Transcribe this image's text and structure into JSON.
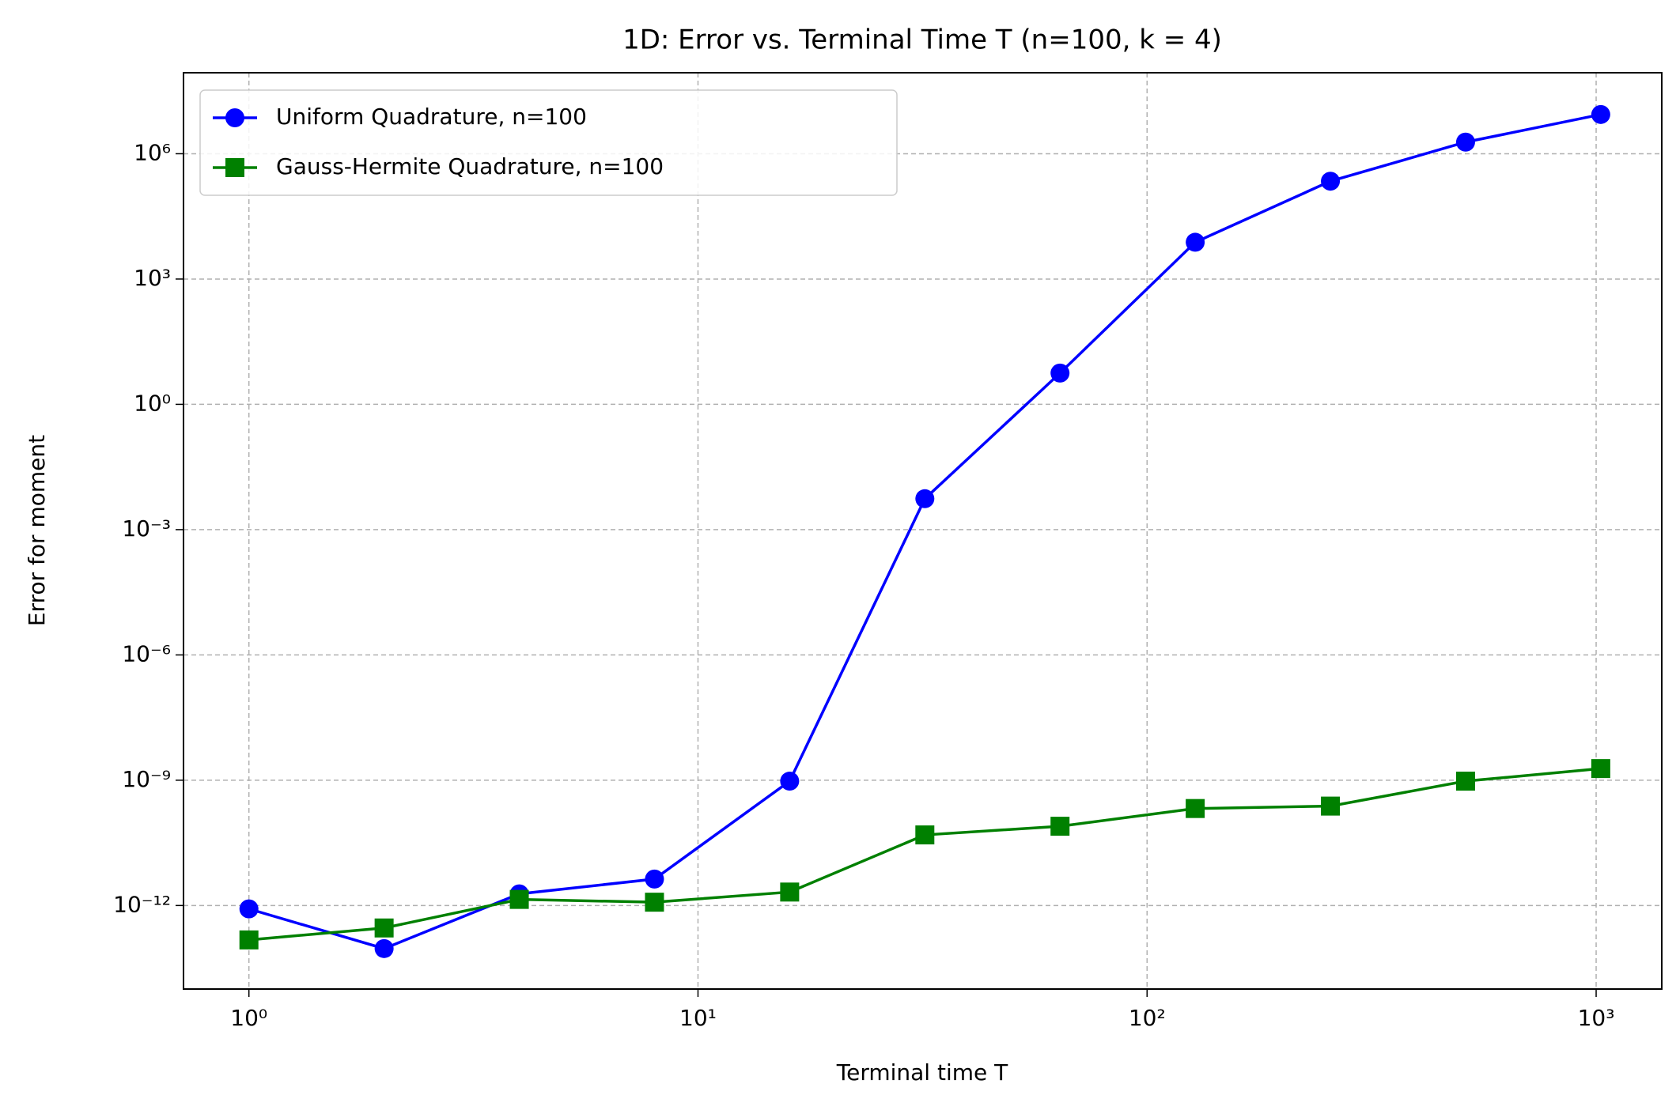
{
  "chart_data": {
    "type": "line",
    "title": "1D: Error vs. Terminal Time T (n=100, k = 4)",
    "xlabel": "Terminal time T",
    "ylabel": "Error for moment",
    "x": [
      1,
      2,
      4,
      8,
      16,
      32,
      64,
      128,
      256,
      512,
      1024
    ],
    "series": [
      {
        "name": "Uniform Quadrature, n=100",
        "color": "#0000ff",
        "marker": "circle",
        "values": [
          8.3e-13,
          9.3e-14,
          1.9e-12,
          4.3e-12,
          9.5e-10,
          0.0055,
          5.6,
          7600,
          220000.0,
          1900000.0,
          8700000.0
        ]
      },
      {
        "name": "Gauss-Hermite Quadrature, n=100",
        "color": "#008000",
        "marker": "square",
        "values": [
          1.5e-13,
          2.9e-13,
          1.4e-12,
          1.2e-12,
          2.1e-12,
          4.9e-11,
          7.9e-11,
          2.1e-10,
          2.4e-10,
          9.5e-10,
          1.9e-09
        ]
      }
    ],
    "xscale": "log",
    "yscale": "log",
    "xlim": [
      0.715,
      1400
    ],
    "ylim": [
      1e-14,
      87000000.0
    ],
    "xticks": [
      {
        "value": 1,
        "label": "10⁰"
      },
      {
        "value": 10,
        "label": "10¹"
      },
      {
        "value": 100,
        "label": "10²"
      },
      {
        "value": 1000,
        "label": "10³"
      }
    ],
    "yticks": [
      {
        "value": 1e-12,
        "label": "10⁻¹²"
      },
      {
        "value": 1e-09,
        "label": "10⁻⁹"
      },
      {
        "value": 1e-06,
        "label": "10⁻⁶"
      },
      {
        "value": 0.001,
        "label": "10⁻³"
      },
      {
        "value": 1,
        "label": "10⁰"
      },
      {
        "value": 1000,
        "label": "10³"
      },
      {
        "value": 1000000,
        "label": "10⁶"
      }
    ],
    "grid": true,
    "legend": "upper left"
  }
}
